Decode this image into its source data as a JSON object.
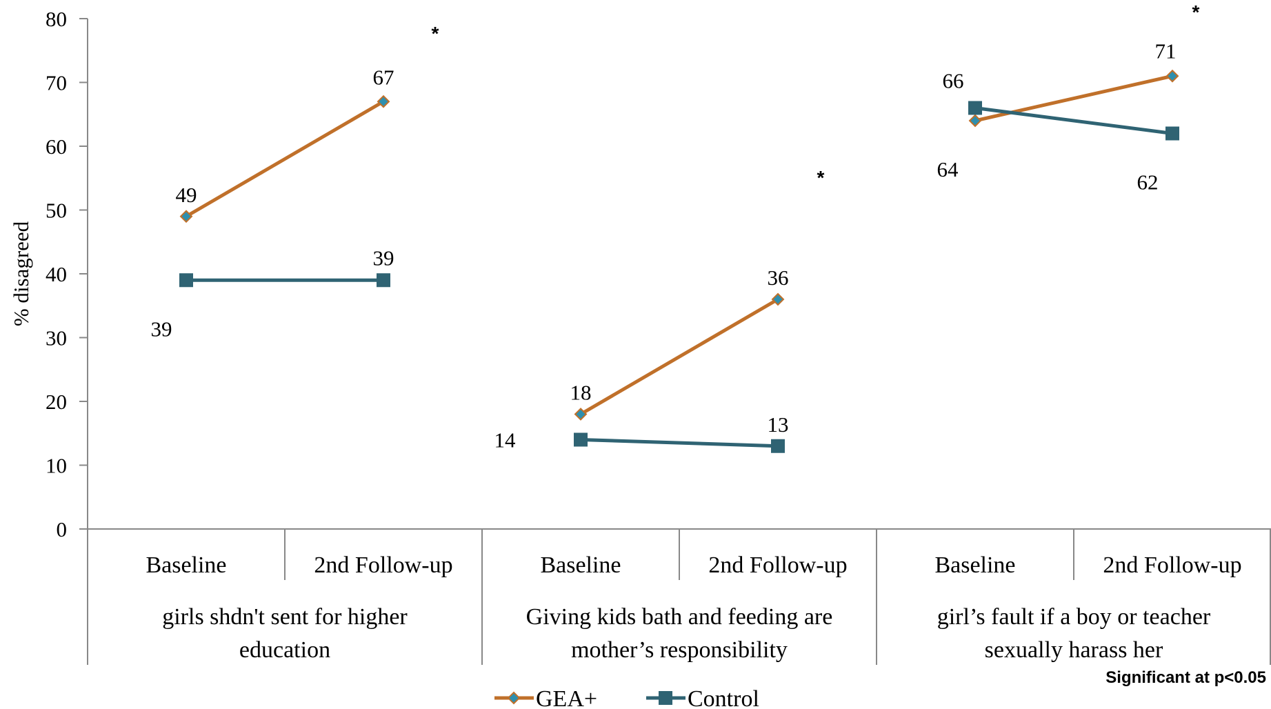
{
  "chart_data": {
    "type": "line",
    "ylabel": "% disagreed",
    "ylim": [
      0,
      80
    ],
    "yticks": [
      "0",
      "10",
      "20",
      "30",
      "40",
      "50",
      "60",
      "70",
      "80"
    ],
    "groups": [
      {
        "lines": [
          "girls shdn't sent for higher",
          "education"
        ],
        "categories": [
          "Baseline",
          "2nd Follow-up"
        ],
        "significant": true
      },
      {
        "lines": [
          "Giving kids bath and feeding are",
          "mother’s responsibility"
        ],
        "categories": [
          "Baseline",
          "2nd Follow-up"
        ],
        "significant": true
      },
      {
        "lines": [
          "girl’s fault if a boy or teacher",
          "sexually harass her"
        ],
        "categories": [
          "Baseline",
          "2nd Follow-up"
        ],
        "significant": true
      }
    ],
    "series": [
      {
        "name": "GEA+",
        "color": "#C0702A",
        "marker": "diamond",
        "marker_color": "#2E8FAE",
        "values": [
          [
            49,
            67
          ],
          [
            18,
            36
          ],
          [
            64,
            71
          ]
        ]
      },
      {
        "name": "Control",
        "color": "#2F6373",
        "marker": "square",
        "marker_color": "#2F6373",
        "values": [
          [
            39,
            39
          ],
          [
            14,
            13
          ],
          [
            66,
            62
          ]
        ]
      }
    ],
    "significance_marker": "*",
    "note": "Significant at p<0.05",
    "legend_position": "bottom",
    "grid": false
  }
}
